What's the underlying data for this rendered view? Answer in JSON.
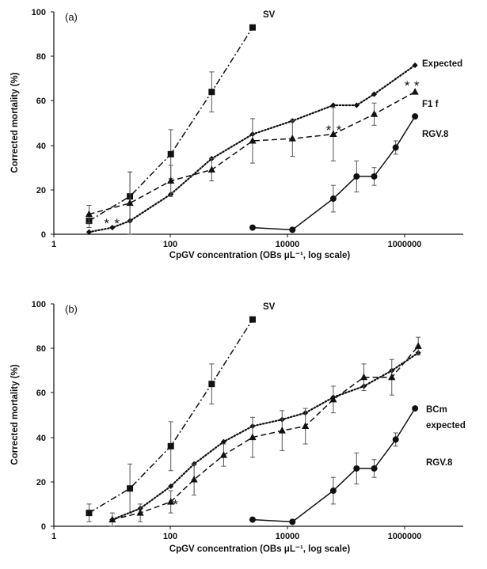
{
  "colors": {
    "ink": "#111111",
    "background": "#ffffff"
  },
  "chart_data": [
    {
      "panel_label": "(a)",
      "type": "line",
      "xlabel": "CpGV concentration (OBs μL⁻¹, log scale)",
      "ylabel": "Corrected mortality (%)",
      "x_scale": "log",
      "xlim": [
        1,
        10000000
      ],
      "ylim": [
        0,
        100
      ],
      "x_ticks": [
        "1",
        "100",
        "10000",
        "1000000"
      ],
      "y_ticks": [
        "0",
        "20",
        "40",
        "60",
        "80",
        "100"
      ],
      "grid": false,
      "series": [
        {
          "name": "SV",
          "marker": "square",
          "line": "dashdot",
          "points": [
            [
              4,
              6
            ],
            [
              20,
              17
            ],
            [
              100,
              36
            ],
            [
              500,
              64
            ],
            [
              2500,
              93
            ]
          ],
          "errors": [
            3,
            11,
            11,
            9,
            0
          ]
        },
        {
          "name": "Expected",
          "marker": "diamond",
          "line": "dotted",
          "points": [
            [
              4,
              1
            ],
            [
              10,
              3
            ],
            [
              20,
              6
            ],
            [
              100,
              18
            ],
            [
              500,
              34
            ],
            [
              2500,
              45
            ],
            [
              12000,
              51
            ],
            [
              60000,
              58
            ],
            [
              150000,
              58
            ],
            [
              300000,
              63
            ],
            [
              1500000,
              76
            ]
          ],
          "errors": [
            0,
            0,
            0,
            0,
            0,
            0,
            0,
            0,
            0,
            0,
            0
          ]
        },
        {
          "name": "F1 f",
          "marker": "triangle",
          "line": "dashed",
          "points": [
            [
              4,
              9
            ],
            [
              20,
              14
            ],
            [
              100,
              24
            ],
            [
              500,
              29
            ],
            [
              2500,
              42
            ],
            [
              12000,
              43
            ],
            [
              60000,
              45
            ],
            [
              300000,
              54
            ],
            [
              1500000,
              64
            ]
          ],
          "errors": [
            4,
            14,
            7,
            5,
            10,
            8,
            12,
            5,
            0
          ]
        },
        {
          "name": "RGV.8",
          "marker": "circle",
          "line": "solid",
          "points": [
            [
              2500,
              3
            ],
            [
              12000,
              2
            ],
            [
              60000,
              16
            ],
            [
              150000,
              26
            ],
            [
              300000,
              26
            ],
            [
              700000,
              39
            ],
            [
              1500000,
              53
            ]
          ],
          "errors": [
            0,
            0,
            6,
            7,
            4,
            3,
            0
          ]
        }
      ],
      "annotations": [
        {
          "text": "*",
          "x": 8,
          "y": 6
        },
        {
          "text": "*",
          "x": 12,
          "y": 6
        },
        {
          "text": "*",
          "x": 50000,
          "y": 48
        },
        {
          "text": "*",
          "x": 75000,
          "y": 48
        },
        {
          "text": "*",
          "x": 1100000,
          "y": 68
        },
        {
          "text": "*",
          "x": 1600000,
          "y": 68
        }
      ]
    },
    {
      "panel_label": "(b)",
      "type": "line",
      "xlabel": "CpGV concentration (OBs μL⁻¹, log scale)",
      "ylabel": "Corrected mortality (%)",
      "x_scale": "log",
      "xlim": [
        1,
        10000000
      ],
      "ylim": [
        0,
        100
      ],
      "x_ticks": [
        "1",
        "100",
        "10000",
        "1000000"
      ],
      "y_ticks": [
        "0",
        "20",
        "40",
        "60",
        "80",
        "100"
      ],
      "grid": false,
      "series": [
        {
          "name": "SV",
          "marker": "square",
          "line": "dashdot",
          "points": [
            [
              4,
              6
            ],
            [
              20,
              17
            ],
            [
              100,
              36
            ],
            [
              500,
              64
            ],
            [
              2500,
              93
            ]
          ],
          "errors": [
            4,
            11,
            11,
            9,
            0
          ]
        },
        {
          "name": "expected",
          "marker": "diamond",
          "line": "dotted",
          "points": [
            [
              10,
              3
            ],
            [
              30,
              8
            ],
            [
              100,
              18
            ],
            [
              250,
              28
            ],
            [
              800,
              38
            ],
            [
              2500,
              45
            ],
            [
              8000,
              48
            ],
            [
              20000,
              51
            ],
            [
              60000,
              58
            ],
            [
              200000,
              63
            ],
            [
              600000,
              70
            ],
            [
              1700000,
              78
            ]
          ],
          "errors": [
            0,
            0,
            0,
            0,
            0,
            0,
            0,
            0,
            0,
            0,
            0,
            0
          ]
        },
        {
          "name": "BCm",
          "marker": "triangle",
          "line": "dashed",
          "points": [
            [
              10,
              3
            ],
            [
              30,
              6
            ],
            [
              100,
              11
            ],
            [
              250,
              21
            ],
            [
              800,
              32
            ],
            [
              2500,
              40
            ],
            [
              8000,
              43
            ],
            [
              20000,
              45
            ],
            [
              60000,
              57
            ],
            [
              200000,
              67
            ],
            [
              600000,
              67
            ],
            [
              1700000,
              81
            ]
          ],
          "errors": [
            3,
            4,
            5,
            7,
            5,
            9,
            9,
            8,
            6,
            6,
            8,
            4
          ]
        },
        {
          "name": "RGV.8",
          "marker": "circle",
          "line": "solid",
          "points": [
            [
              2500,
              3
            ],
            [
              12000,
              2
            ],
            [
              60000,
              16
            ],
            [
              150000,
              26
            ],
            [
              300000,
              26
            ],
            [
              700000,
              39
            ],
            [
              1500000,
              53
            ]
          ],
          "errors": [
            0,
            0,
            6,
            7,
            4,
            3,
            0
          ]
        }
      ],
      "annotations": [
        {
          "text": "*",
          "x": 120,
          "y": 11
        }
      ]
    }
  ],
  "series_labels": {
    "a": {
      "sv": "SV",
      "expected": "Expected",
      "f1f": "F1 f",
      "rgv": "RGV.8"
    },
    "b": {
      "sv": "SV",
      "bcm": "BCm",
      "expected": "expected",
      "rgv": "RGV.8"
    }
  }
}
